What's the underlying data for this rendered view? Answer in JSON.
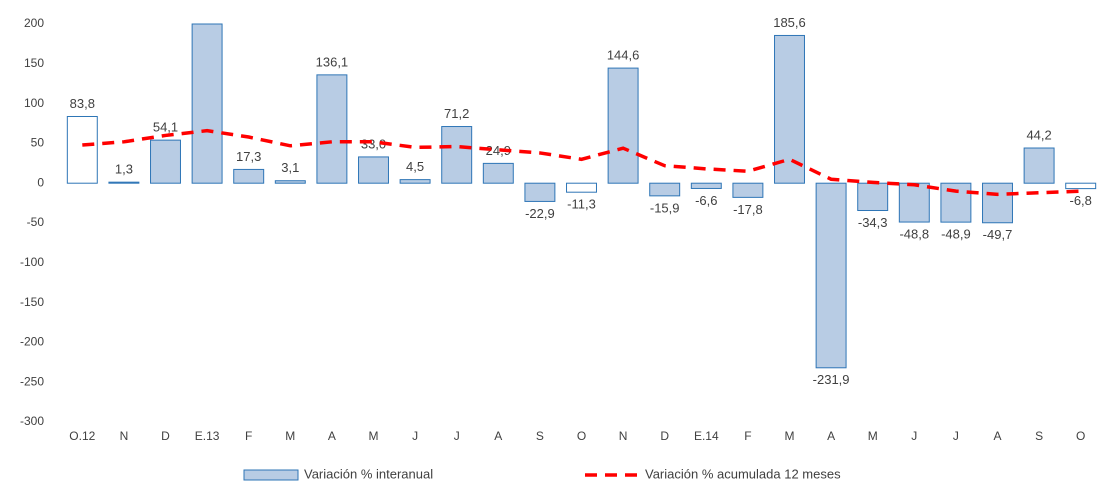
{
  "chart_data": {
    "type": "bar_line",
    "categories": [
      "O.12",
      "N",
      "D",
      "E.13",
      "F",
      "M",
      "A",
      "M",
      "J",
      "J",
      "A",
      "S",
      "O",
      "N",
      "D",
      "E.14",
      "F",
      "M",
      "A",
      "M",
      "J",
      "J",
      "A",
      "S",
      "O"
    ],
    "series": [
      {
        "name": "Variación % interanual",
        "type": "bar",
        "color": "#b8cce4",
        "edge_color": "#2e75b6",
        "colors": [
          "#ffffff",
          "#b8cce4",
          "#b8cce4",
          "#b8cce4",
          "#b8cce4",
          "#b8cce4",
          "#b8cce4",
          "#b8cce4",
          "#b8cce4",
          "#b8cce4",
          "#b8cce4",
          "#b8cce4",
          "#ffffff",
          "#b8cce4",
          "#b8cce4",
          "#b8cce4",
          "#b8cce4",
          "#b8cce4",
          "#b8cce4",
          "#b8cce4",
          "#b8cce4",
          "#b8cce4",
          "#b8cce4",
          "#b8cce4",
          "#ffffff"
        ],
        "values": [
          83.8,
          1.3,
          54.1,
          200,
          17.3,
          3.1,
          136.1,
          33.0,
          4.5,
          71.2,
          24.9,
          -22.9,
          -11.3,
          144.6,
          -15.9,
          -6.6,
          -17.8,
          185.6,
          -231.9,
          -34.3,
          -48.8,
          -48.9,
          -49.7,
          44.2,
          -6.8
        ],
        "value_labels": [
          "83,8",
          "1,3",
          "54,1",
          null,
          "17,3",
          "3,1",
          "136,1",
          "33,0",
          "4,5",
          "71,2",
          "24,9",
          "-22,9",
          "-11,3",
          "144,6",
          "-15,9",
          "-6,6",
          "-17,8",
          "185,6",
          "-231,9",
          "-34,3",
          "-48,8",
          "-48,9",
          "-49,7",
          "44,2",
          "-6,8"
        ]
      },
      {
        "name": "Variación % acumulada 12 meses",
        "type": "line",
        "color": "#ff0000",
        "dashed": true,
        "values": [
          48,
          52,
          60,
          66,
          58,
          47,
          52,
          52,
          45,
          46,
          42,
          38,
          30,
          44,
          22,
          18,
          15,
          30,
          5,
          1,
          -2,
          -10,
          -14,
          -12,
          -10
        ]
      }
    ],
    "ylim": [
      -300,
      200
    ],
    "yticks": [
      -300,
      -250,
      -200,
      -150,
      -100,
      -50,
      0,
      50,
      100,
      150,
      200
    ],
    "legend": "bottom"
  }
}
